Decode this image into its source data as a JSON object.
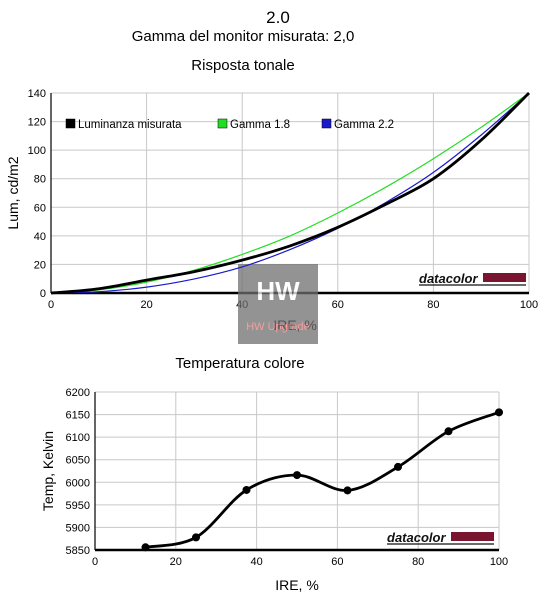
{
  "header": {
    "value": "2.0",
    "subtitle": "Gamma del monitor misurata: 2,0"
  },
  "watermark": {
    "brand": "datacolor",
    "logo_text": "HW Upgrade"
  },
  "chart_data": [
    {
      "type": "line",
      "title": "Risposta tonale",
      "xlabel": "IRE, %",
      "ylabel": "Lum, cd/m2",
      "xlim": [
        0,
        100
      ],
      "ylim": [
        0,
        140
      ],
      "x_ticks": [
        "0",
        "20",
        "40",
        "60",
        "80",
        "100"
      ],
      "y_ticks": [
        "0",
        "20",
        "40",
        "60",
        "80",
        "100",
        "120",
        "140"
      ],
      "grid": true,
      "legend_position": "top-left",
      "series": [
        {
          "name": "Luminanza misurata",
          "color": "#000000",
          "x": [
            0,
            10,
            20,
            30,
            40,
            50,
            60,
            70,
            80,
            90,
            100
          ],
          "y": [
            0,
            3,
            9,
            15,
            23,
            33,
            46,
            62,
            80,
            107,
            140
          ]
        },
        {
          "name": "Gamma 1.8",
          "color": "#22dd22",
          "x": [
            0,
            10,
            20,
            30,
            40,
            50,
            60,
            70,
            80,
            90,
            100
          ],
          "y": [
            0,
            2.2,
            7.6,
            16,
            27,
            40,
            56,
            74,
            94,
            116,
            140
          ]
        },
        {
          "name": "Gamma 2.2",
          "color": "#1a1acc",
          "x": [
            0,
            10,
            20,
            30,
            40,
            50,
            60,
            70,
            80,
            90,
            100
          ],
          "y": [
            0,
            0.9,
            4.1,
            9.9,
            18.3,
            30.4,
            45.3,
            63.3,
            84.4,
            110.6,
            140
          ]
        }
      ]
    },
    {
      "type": "line",
      "title": "Temperatura colore",
      "xlabel": "IRE, %",
      "ylabel": "Temp, Kelvin",
      "xlim": [
        0,
        100
      ],
      "ylim": [
        5850,
        6200
      ],
      "x_ticks": [
        "0",
        "20",
        "40",
        "60",
        "80",
        "100"
      ],
      "y_ticks": [
        "5850",
        "5900",
        "5950",
        "6000",
        "6050",
        "6100",
        "6150",
        "6200"
      ],
      "grid": true,
      "series": [
        {
          "color": "#000000",
          "x": [
            12.5,
            25,
            37.5,
            50,
            62.5,
            75,
            87.5,
            100
          ],
          "y": [
            5856,
            5878,
            5983,
            6016,
            5982,
            6034,
            6113,
            6155
          ]
        }
      ]
    }
  ]
}
